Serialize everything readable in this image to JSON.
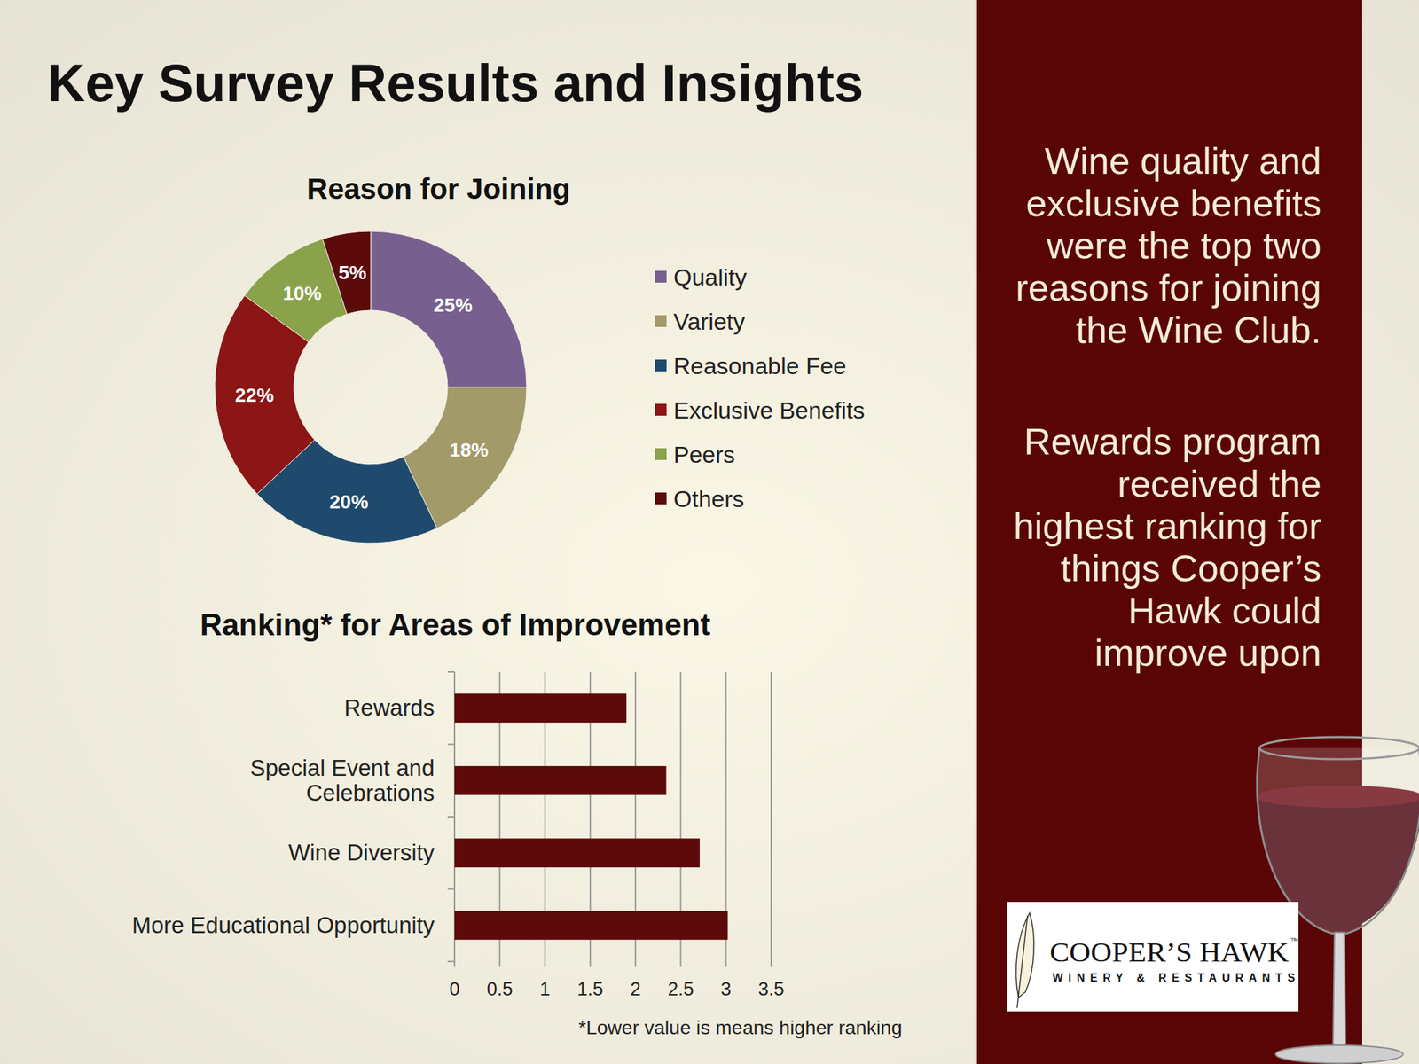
{
  "title": "Key Survey Results and Insights",
  "insights": [
    "Wine quality and exclusive benefits were the top two reasons for joining the Wine Club.",
    "Rewards program received the highest ranking for things Cooper’s Hawk could improve upon"
  ],
  "logo": {
    "name": "COOPER’S HAWK",
    "trademark": "™",
    "tagline": "WINERY & RESTAURANTS"
  },
  "chart_data": [
    {
      "type": "donut",
      "title": "Reason for Joining",
      "categories": [
        "Quality",
        "Variety",
        "Reasonable Fee",
        "Exclusive Benefits",
        "Peers",
        "Others"
      ],
      "values": [
        25,
        18,
        20,
        22,
        10,
        5
      ],
      "value_labels": [
        "25%",
        "18%",
        "20%",
        "22%",
        "10%",
        "5%"
      ],
      "colors": [
        "#77608f",
        "#a39a6a",
        "#1f4a6e",
        "#8c1515",
        "#8aa24a",
        "#5c0a0a"
      ],
      "data_labels": true,
      "legend": "right"
    },
    {
      "type": "bar",
      "orientation": "horizontal",
      "title": "Ranking* for Areas of Improvement",
      "categories": [
        "Rewards",
        "Special Event and Celebrations",
        "Wine Diversity",
        "More Educational Opportunity"
      ],
      "values": [
        1.9,
        2.34,
        2.71,
        3.02
      ],
      "color": "#5c0a0a",
      "xlim": [
        0,
        3.5
      ],
      "xticks": [
        0,
        0.5,
        1,
        1.5,
        2,
        2.5,
        3,
        3.5
      ],
      "grid": true,
      "annotation": "*Lower value is means higher ranking"
    }
  ]
}
